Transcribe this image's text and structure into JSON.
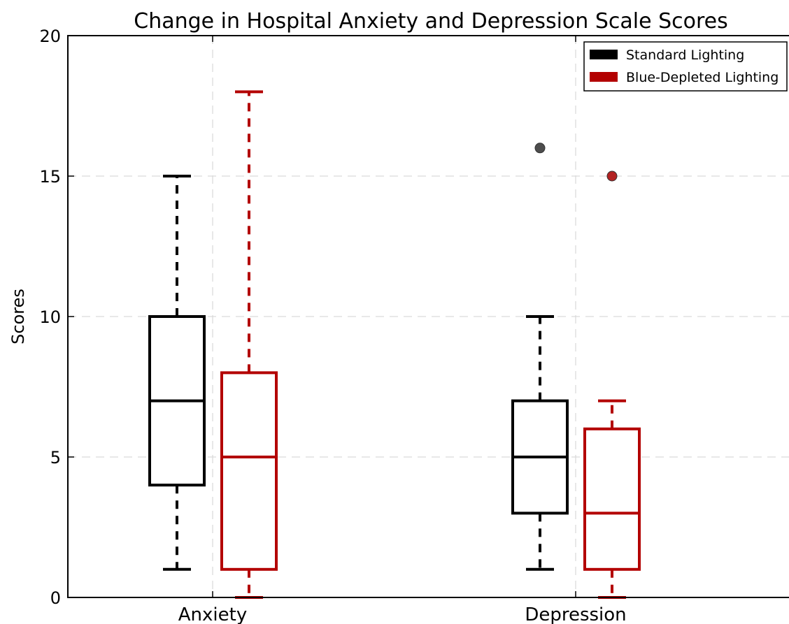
{
  "chart_data": {
    "type": "box",
    "title": "Change in Hospital Anxiety and Depression Scale Scores",
    "xlabel": "",
    "ylabel": "Scores",
    "ylim": [
      0,
      20
    ],
    "yticks": [
      0,
      5,
      10,
      15,
      20
    ],
    "categories": [
      "Anxiety",
      "Depression"
    ],
    "grid": true,
    "legend_position": "top-right",
    "series": [
      {
        "name": "Standard Lighting",
        "color": "#000000",
        "outlier_color": "#4d4d4d",
        "boxes": [
          {
            "category": "Anxiety",
            "whisker_low": 1,
            "q1": 4,
            "median": 7,
            "q3": 10,
            "whisker_high": 15,
            "outliers": []
          },
          {
            "category": "Depression",
            "whisker_low": 1,
            "q1": 3,
            "median": 5,
            "q3": 7,
            "whisker_high": 10,
            "outliers": [
              16
            ]
          }
        ]
      },
      {
        "name": "Blue-Depleted Lighting",
        "color": "#b30000",
        "outlier_color": "#b22222",
        "boxes": [
          {
            "category": "Anxiety",
            "whisker_low": 0,
            "q1": 1,
            "median": 5,
            "q3": 8,
            "whisker_high": 18,
            "outliers": []
          },
          {
            "category": "Depression",
            "whisker_low": 0,
            "q1": 1,
            "median": 3,
            "q3": 6,
            "whisker_high": 7,
            "outliers": [
              15
            ]
          }
        ]
      }
    ]
  }
}
